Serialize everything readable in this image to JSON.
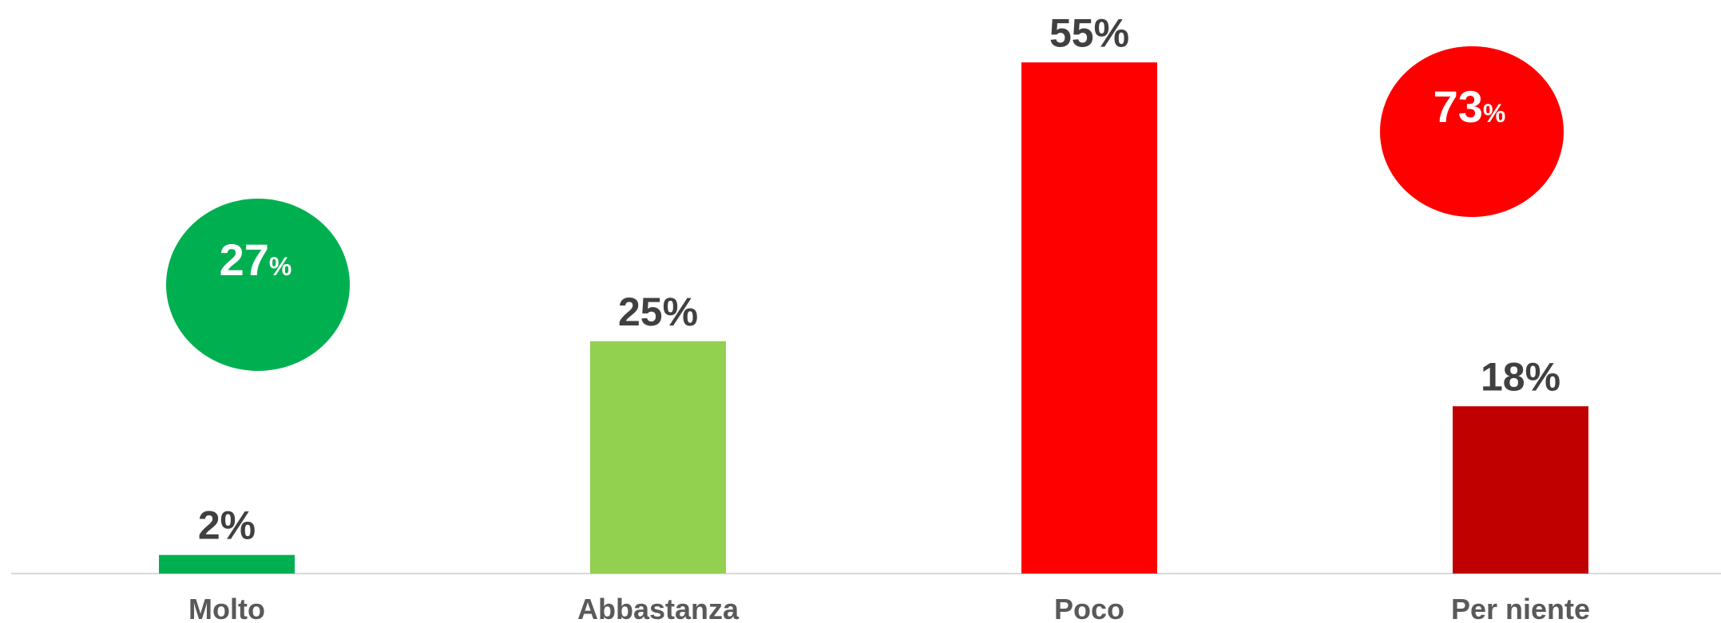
{
  "chart_data": {
    "type": "bar",
    "categories": [
      "Molto",
      "Abbastanza",
      "Poco",
      "Per niente"
    ],
    "values": [
      2,
      25,
      55,
      18
    ],
    "value_labels": [
      "2%",
      "25%",
      "55%",
      "18%"
    ],
    "colors": [
      "#00b050",
      "#92d050",
      "#ff0000",
      "#c00000"
    ],
    "ylim": [
      0,
      60
    ],
    "summary": [
      {
        "value": 27,
        "label": "27",
        "unit": "%",
        "color": "#00b050"
      },
      {
        "value": 73,
        "label": "73",
        "unit": "%",
        "color": "#ff0000"
      }
    ]
  }
}
